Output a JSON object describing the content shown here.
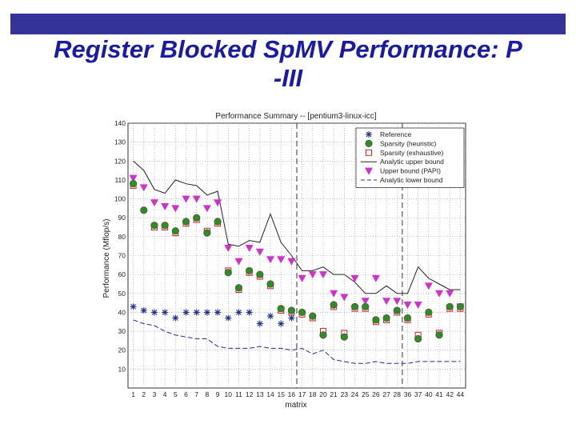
{
  "slide": {
    "title_line1": "Register Blocked SpMV Performance: P",
    "title_line2": "-III",
    "bar_color": "#333399",
    "title_color": "#1a1aa6"
  },
  "chart_data": {
    "type": "scatter",
    "title": "Performance Summary -- [pentium3-linux-icc]",
    "xlabel": "matrix",
    "ylabel": "Performance (Mflop/s)",
    "ylim": [
      0,
      140
    ],
    "yticks": [
      10,
      20,
      30,
      40,
      50,
      60,
      70,
      80,
      90,
      100,
      110,
      120,
      130,
      140
    ],
    "ytick_labels": [
      "10",
      "20",
      "30",
      "40",
      "50",
      "60",
      "70",
      "80",
      "90",
      "100",
      "110",
      "120",
      "130",
      "140"
    ],
    "grid": true,
    "legend_position": "top-right",
    "categories": [
      "1",
      "2",
      "3",
      "4",
      "5",
      "6",
      "7",
      "8",
      "9",
      "10",
      "11",
      "12",
      "13",
      "14",
      "15",
      "16",
      "17",
      "18",
      "20",
      "21",
      "23",
      "24",
      "25",
      "26",
      "27",
      "28",
      "36",
      "37",
      "40",
      "41",
      "42",
      "44"
    ],
    "vlines_after": [
      "16",
      "28"
    ],
    "series": [
      {
        "name": "Reference",
        "marker": "asterisk",
        "color": "#1f2f8f",
        "values": [
          43,
          41,
          40,
          40,
          37,
          40,
          40,
          40,
          40,
          37,
          40,
          40,
          34,
          38,
          34,
          37,
          null,
          null,
          null,
          null,
          null,
          null,
          null,
          null,
          null,
          null,
          null,
          null,
          null,
          null,
          null,
          null
        ]
      },
      {
        "name": "Sparsity (heuristic)",
        "marker": "circle",
        "color": "#2e8b2e",
        "values": [
          108,
          94,
          86,
          86,
          83,
          88,
          90,
          82,
          88,
          61,
          53,
          62,
          60,
          55,
          42,
          41,
          40,
          38,
          28,
          44,
          27,
          43,
          43,
          36,
          37,
          41,
          37,
          26,
          40,
          28,
          43,
          43
        ]
      },
      {
        "name": "Sparsity (exhaustive)",
        "marker": "square",
        "color": "#cc2222",
        "values": [
          107,
          null,
          85,
          85,
          82,
          87,
          89,
          83,
          87,
          62,
          52,
          61,
          59,
          54,
          41,
          40,
          39,
          37,
          30,
          43,
          29,
          42,
          42,
          35,
          36,
          40,
          36,
          28,
          39,
          29,
          42,
          42
        ]
      },
      {
        "name": "Analytic upper bound",
        "marker": "solid-line",
        "color": "#222222",
        "values": [
          120,
          115,
          105,
          103,
          110,
          108,
          107,
          102,
          104,
          76,
          75,
          78,
          77,
          92,
          77,
          70,
          62,
          62,
          64,
          60,
          60,
          56,
          50,
          50,
          54,
          50,
          50,
          64,
          58,
          55,
          52,
          52
        ]
      },
      {
        "name": "Upper bound (PAPI)",
        "marker": "triangle-down",
        "color": "#cc33cc",
        "values": [
          111,
          106,
          98,
          96,
          95,
          100,
          100,
          95,
          98,
          74,
          67,
          74,
          72,
          68,
          68,
          67,
          58,
          60,
          60,
          50,
          48,
          58,
          46,
          58,
          46,
          46,
          44,
          44,
          54,
          50,
          50,
          43
        ]
      },
      {
        "name": "Analytic lower bound",
        "marker": "dashed-line",
        "color": "#1f2f8f",
        "values": [
          36,
          34,
          33,
          30,
          28,
          27,
          26,
          26,
          22,
          21,
          21,
          21,
          22,
          21,
          21,
          20,
          21,
          18,
          20,
          15,
          14,
          13,
          13,
          14,
          13,
          13,
          13,
          14,
          14,
          14,
          14,
          14
        ]
      }
    ]
  }
}
